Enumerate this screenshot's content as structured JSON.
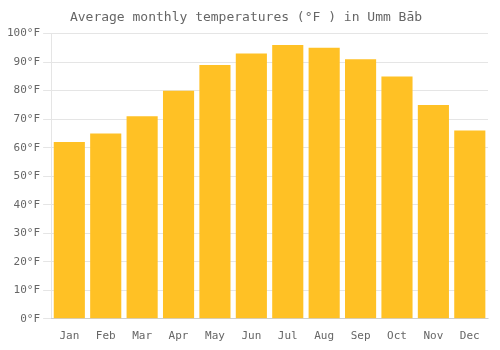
{
  "chart_data": {
    "type": "bar",
    "title": "Average monthly temperatures (°F ) in Umm Bāb",
    "categories": [
      "Jan",
      "Feb",
      "Mar",
      "Apr",
      "May",
      "Jun",
      "Jul",
      "Aug",
      "Sep",
      "Oct",
      "Nov",
      "Dec"
    ],
    "values": [
      62,
      65,
      71,
      80,
      89,
      93,
      96,
      95,
      91,
      85,
      75,
      66
    ],
    "color": "#FFC125",
    "ylim": [
      0,
      100
    ],
    "yticks": [
      {
        "value": 0,
        "label": "0°F"
      },
      {
        "value": 10,
        "label": "10°F"
      },
      {
        "value": 20,
        "label": "20°F"
      },
      {
        "value": 30,
        "label": "30°F"
      },
      {
        "value": 40,
        "label": "40°F"
      },
      {
        "value": 50,
        "label": "50°F"
      },
      {
        "value": 60,
        "label": "60°F"
      },
      {
        "value": 70,
        "label": "70°F"
      },
      {
        "value": 80,
        "label": "80°F"
      },
      {
        "value": 90,
        "label": "90°F"
      },
      {
        "value": 100,
        "label": "100°F"
      }
    ],
    "grid": true
  }
}
